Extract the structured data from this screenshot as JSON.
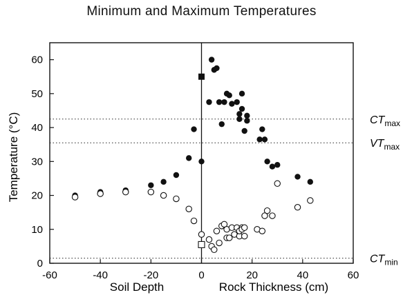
{
  "chart_data": {
    "type": "scatter",
    "title": "Minimum and Maximum Temperatures",
    "ylabel": "Temperature (°C)",
    "xlabel_left": "Soil Depth",
    "xlabel_right": "Rock Thickness (cm)",
    "xlim": [
      -60,
      60
    ],
    "ylim": [
      0,
      65
    ],
    "x_ticks": [
      -60,
      -40,
      -20,
      0,
      20,
      40,
      60
    ],
    "x_tick_labels": [
      "-60",
      "-40",
      "-20",
      "0",
      "20",
      "40",
      "60"
    ],
    "y_ticks": [
      0,
      10,
      20,
      30,
      40,
      50,
      60
    ],
    "y_tick_labels": [
      "0",
      "10",
      "20",
      "30",
      "40",
      "50",
      "60"
    ],
    "grid": false,
    "reference_lines": [
      {
        "value": 42.5,
        "label_main": "CT",
        "label_sub": "max",
        "style": "dotted"
      },
      {
        "value": 35.5,
        "label_main": "VT",
        "label_sub": "max",
        "style": "dotted"
      },
      {
        "value": 1.5,
        "label_main": "CT",
        "label_sub": "min",
        "style": "dotted"
      }
    ],
    "vertical_line_at_x": 0,
    "series": [
      {
        "marker": "filled-circle",
        "points": [
          [
            -50,
            20
          ],
          [
            -40,
            21
          ],
          [
            -30,
            21.5
          ],
          [
            -20,
            23
          ],
          [
            -15,
            24
          ],
          [
            -10,
            26
          ],
          [
            -5,
            31
          ],
          [
            -3,
            39.5
          ],
          [
            0,
            30
          ],
          [
            3,
            47.5
          ],
          [
            4,
            60
          ],
          [
            5,
            57
          ],
          [
            6,
            57.5
          ],
          [
            7,
            47.5
          ],
          [
            8,
            41
          ],
          [
            9,
            47.5
          ],
          [
            10,
            50
          ],
          [
            11,
            49.5
          ],
          [
            12,
            47
          ],
          [
            14,
            47.5
          ],
          [
            15,
            44
          ],
          [
            15,
            42.5
          ],
          [
            16,
            50
          ],
          [
            16,
            45.5
          ],
          [
            17,
            39
          ],
          [
            18,
            43.5
          ],
          [
            18,
            42
          ],
          [
            23,
            36.5
          ],
          [
            24,
            39.5
          ],
          [
            25,
            36.5
          ],
          [
            26,
            30
          ],
          [
            28,
            28.5
          ],
          [
            30,
            29
          ],
          [
            38,
            25.5
          ],
          [
            43,
            24
          ]
        ]
      },
      {
        "marker": "open-circle",
        "points": [
          [
            -50,
            19.5
          ],
          [
            -40,
            20.5
          ],
          [
            -30,
            21
          ],
          [
            -20,
            21
          ],
          [
            -15,
            20
          ],
          [
            -10,
            19
          ],
          [
            -5,
            16
          ],
          [
            -3,
            12.5
          ],
          [
            0,
            8.5
          ],
          [
            3,
            7
          ],
          [
            4,
            5
          ],
          [
            5,
            4
          ],
          [
            6,
            9.5
          ],
          [
            7,
            6
          ],
          [
            8,
            11
          ],
          [
            9,
            11.5
          ],
          [
            10,
            10
          ],
          [
            10,
            7.5
          ],
          [
            11,
            7.5
          ],
          [
            12,
            10.5
          ],
          [
            13,
            8.5
          ],
          [
            14,
            10.5
          ],
          [
            15,
            8
          ],
          [
            15,
            9.5
          ],
          [
            16,
            10.5
          ],
          [
            16,
            10
          ],
          [
            17,
            10.5
          ],
          [
            17,
            8
          ],
          [
            22,
            10
          ],
          [
            24,
            9.5
          ],
          [
            25,
            14
          ],
          [
            26,
            15.5
          ],
          [
            28,
            14
          ],
          [
            30,
            23.5
          ],
          [
            38,
            16.5
          ],
          [
            43,
            18.5
          ]
        ]
      },
      {
        "marker": "filled-square",
        "points": [
          [
            0,
            55
          ]
        ]
      },
      {
        "marker": "open-square",
        "points": [
          [
            0,
            5.5
          ]
        ]
      }
    ]
  }
}
